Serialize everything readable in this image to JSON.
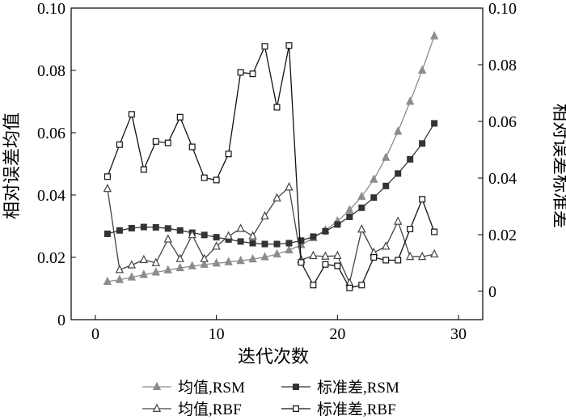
{
  "chart_data": {
    "type": "line",
    "xlabel": "迭代次数",
    "ylabel_left": "相对误差均值",
    "ylabel_right": "相对误差标准差",
    "xlim": [
      -2,
      32
    ],
    "ylim_left": [
      0,
      0.1
    ],
    "ylim_right": [
      -0.01,
      0.1
    ],
    "x_ticks": [
      "0",
      "10",
      "20",
      "30"
    ],
    "y_left_ticks": [
      "0",
      "0.02",
      "0.04",
      "0.06",
      "0.08",
      "0.10"
    ],
    "y_right_ticks": [
      "0",
      "0.02",
      "0.04",
      "0.06",
      "0.08",
      "0.10"
    ],
    "grid": false,
    "legend_position": "bottom",
    "series": [
      {
        "name": "均值,RSM",
        "axis": "left",
        "marker": "triangle-filled",
        "color": "#8c8c8c",
        "x": [
          1,
          2,
          3,
          4,
          5,
          6,
          7,
          8,
          9,
          10,
          11,
          12,
          13,
          14,
          15,
          16,
          17,
          18,
          19,
          20,
          21,
          22,
          23,
          24,
          25,
          26,
          27,
          28
        ],
        "y": [
          0.0122,
          0.0128,
          0.0136,
          0.0144,
          0.0152,
          0.0159,
          0.0166,
          0.0172,
          0.0177,
          0.0181,
          0.0185,
          0.0189,
          0.0194,
          0.0201,
          0.021,
          0.0223,
          0.024,
          0.0262,
          0.0287,
          0.0316,
          0.0352,
          0.0395,
          0.045,
          0.052,
          0.0604,
          0.07,
          0.08,
          0.091
        ]
      },
      {
        "name": "标准差,RSM",
        "axis": "right",
        "marker": "square-filled",
        "color": "#333333",
        "x": [
          1,
          2,
          3,
          4,
          5,
          6,
          7,
          8,
          9,
          10,
          11,
          12,
          13,
          14,
          15,
          16,
          17,
          18,
          19,
          20,
          21,
          22,
          23,
          24,
          25,
          26,
          27,
          28
        ],
        "y": [
          0.0203,
          0.0215,
          0.0223,
          0.0227,
          0.0226,
          0.0222,
          0.0215,
          0.0207,
          0.0199,
          0.0191,
          0.0183,
          0.0176,
          0.017,
          0.0167,
          0.0167,
          0.017,
          0.0179,
          0.0193,
          0.0212,
          0.0236,
          0.0263,
          0.0295,
          0.0331,
          0.0372,
          0.0416,
          0.0466,
          0.0522,
          0.0593
        ]
      },
      {
        "name": "均值,RBF",
        "axis": "left",
        "marker": "triangle-open",
        "color": "#444444",
        "x": [
          1,
          2,
          3,
          4,
          5,
          6,
          7,
          8,
          9,
          10,
          11,
          12,
          13,
          14,
          15,
          16,
          17,
          18,
          19,
          20,
          21,
          22,
          23,
          24,
          25,
          26,
          27,
          28
        ],
        "y": [
          0.042,
          0.016,
          0.0175,
          0.0192,
          0.0182,
          0.0258,
          0.0195,
          0.0272,
          0.0195,
          0.0235,
          0.0268,
          0.0292,
          0.0268,
          0.0332,
          0.039,
          0.0425,
          0.0192,
          0.0205,
          0.0203,
          0.0205,
          0.0118,
          0.029,
          0.0215,
          0.0235,
          0.0315,
          0.0202,
          0.0202,
          0.021
        ]
      },
      {
        "name": "标准差,RBF",
        "axis": "right",
        "marker": "square-open",
        "color": "#111111",
        "x": [
          1,
          2,
          3,
          4,
          5,
          6,
          7,
          8,
          9,
          10,
          11,
          12,
          13,
          14,
          15,
          16,
          17,
          18,
          19,
          20,
          21,
          22,
          23,
          24,
          25,
          26,
          27,
          28
        ],
        "y": [
          0.0405,
          0.0518,
          0.0625,
          0.043,
          0.0529,
          0.0524,
          0.0615,
          0.051,
          0.0401,
          0.0393,
          0.0485,
          0.0773,
          0.0768,
          0.0865,
          0.065,
          0.0868,
          0.0102,
          0.0022,
          0.0095,
          0.009,
          0.0012,
          0.0022,
          0.012,
          0.011,
          0.011,
          0.022,
          0.0325,
          0.021
        ]
      }
    ]
  }
}
